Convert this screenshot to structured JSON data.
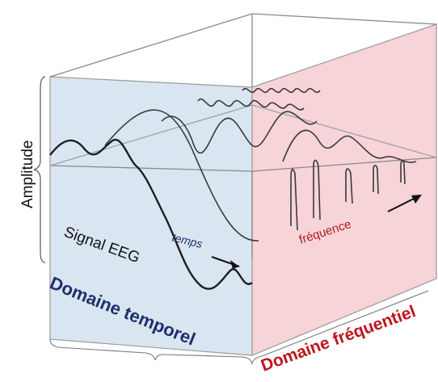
{
  "labels": {
    "amplitude": "Amplitude",
    "signal": "Signal EEG",
    "time_axis": "temps",
    "frequency_axis": "fréquence",
    "time_domain": "Domaine temporel",
    "frequency_domain": "Domaine fréquentiel"
  },
  "colors": {
    "time_face": "#d9e6f1",
    "frequency_face": "#f7d4d8",
    "time_domain_text": "#1f2f6b",
    "frequency_domain_text": "#c0141c",
    "frequency_axis_text": "#b01a22",
    "line": "#2b2b2b",
    "frame": "#8a8a8a"
  }
}
